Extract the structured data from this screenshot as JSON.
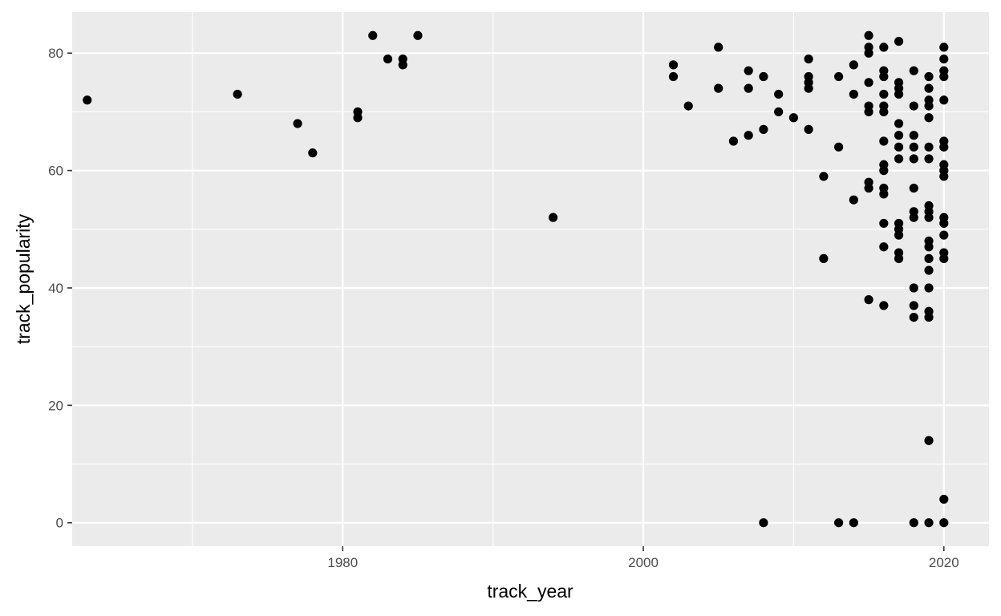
{
  "chart_data": {
    "type": "scatter",
    "title": "",
    "xlabel": "track_year",
    "ylabel": "track_popularity",
    "xlim": [
      1962,
      2023
    ],
    "ylim": [
      -4,
      87
    ],
    "x_ticks": [
      1980,
      2000,
      2020
    ],
    "x_tick_labels": [
      "1980",
      "2000",
      "2020"
    ],
    "y_ticks": [
      0,
      20,
      40,
      60,
      80
    ],
    "y_tick_labels": [
      "0",
      "20",
      "40",
      "60",
      "80"
    ],
    "grid": true,
    "legend": "none",
    "colors": {
      "panel": "#ebebeb",
      "grid": "#ffffff",
      "point": "#000000"
    },
    "points": [
      {
        "x": 1963,
        "y": 72
      },
      {
        "x": 1973,
        "y": 73
      },
      {
        "x": 1977,
        "y": 68
      },
      {
        "x": 1978,
        "y": 63
      },
      {
        "x": 1981,
        "y": 70
      },
      {
        "x": 1981,
        "y": 69
      },
      {
        "x": 1982,
        "y": 83
      },
      {
        "x": 1983,
        "y": 79
      },
      {
        "x": 1984,
        "y": 79
      },
      {
        "x": 1984,
        "y": 78
      },
      {
        "x": 1985,
        "y": 83
      },
      {
        "x": 1994,
        "y": 52
      },
      {
        "x": 2002,
        "y": 78
      },
      {
        "x": 2002,
        "y": 76
      },
      {
        "x": 2003,
        "y": 71
      },
      {
        "x": 2005,
        "y": 81
      },
      {
        "x": 2005,
        "y": 74
      },
      {
        "x": 2006,
        "y": 65
      },
      {
        "x": 2007,
        "y": 77
      },
      {
        "x": 2007,
        "y": 74
      },
      {
        "x": 2007,
        "y": 66
      },
      {
        "x": 2008,
        "y": 76
      },
      {
        "x": 2008,
        "y": 67
      },
      {
        "x": 2008,
        "y": 0
      },
      {
        "x": 2009,
        "y": 73
      },
      {
        "x": 2009,
        "y": 70
      },
      {
        "x": 2010,
        "y": 69
      },
      {
        "x": 2011,
        "y": 79
      },
      {
        "x": 2011,
        "y": 76
      },
      {
        "x": 2011,
        "y": 75
      },
      {
        "x": 2011,
        "y": 74
      },
      {
        "x": 2011,
        "y": 67
      },
      {
        "x": 2012,
        "y": 59
      },
      {
        "x": 2012,
        "y": 45
      },
      {
        "x": 2013,
        "y": 76
      },
      {
        "x": 2013,
        "y": 64
      },
      {
        "x": 2013,
        "y": 0
      },
      {
        "x": 2014,
        "y": 78
      },
      {
        "x": 2014,
        "y": 73
      },
      {
        "x": 2014,
        "y": 55
      },
      {
        "x": 2014,
        "y": 0
      },
      {
        "x": 2015,
        "y": 83
      },
      {
        "x": 2015,
        "y": 81
      },
      {
        "x": 2015,
        "y": 80
      },
      {
        "x": 2015,
        "y": 75
      },
      {
        "x": 2015,
        "y": 71
      },
      {
        "x": 2015,
        "y": 70
      },
      {
        "x": 2015,
        "y": 58
      },
      {
        "x": 2015,
        "y": 57
      },
      {
        "x": 2015,
        "y": 38
      },
      {
        "x": 2016,
        "y": 81
      },
      {
        "x": 2016,
        "y": 77
      },
      {
        "x": 2016,
        "y": 76
      },
      {
        "x": 2016,
        "y": 73
      },
      {
        "x": 2016,
        "y": 71
      },
      {
        "x": 2016,
        "y": 70
      },
      {
        "x": 2016,
        "y": 65
      },
      {
        "x": 2016,
        "y": 61
      },
      {
        "x": 2016,
        "y": 60
      },
      {
        "x": 2016,
        "y": 57
      },
      {
        "x": 2016,
        "y": 56
      },
      {
        "x": 2016,
        "y": 51
      },
      {
        "x": 2016,
        "y": 47
      },
      {
        "x": 2016,
        "y": 37
      },
      {
        "x": 2017,
        "y": 82
      },
      {
        "x": 2017,
        "y": 75
      },
      {
        "x": 2017,
        "y": 74
      },
      {
        "x": 2017,
        "y": 73
      },
      {
        "x": 2017,
        "y": 68
      },
      {
        "x": 2017,
        "y": 66
      },
      {
        "x": 2017,
        "y": 64
      },
      {
        "x": 2017,
        "y": 62
      },
      {
        "x": 2017,
        "y": 51
      },
      {
        "x": 2017,
        "y": 50
      },
      {
        "x": 2017,
        "y": 49
      },
      {
        "x": 2017,
        "y": 46
      },
      {
        "x": 2017,
        "y": 45
      },
      {
        "x": 2018,
        "y": 77
      },
      {
        "x": 2018,
        "y": 71
      },
      {
        "x": 2018,
        "y": 66
      },
      {
        "x": 2018,
        "y": 64
      },
      {
        "x": 2018,
        "y": 62
      },
      {
        "x": 2018,
        "y": 57
      },
      {
        "x": 2018,
        "y": 53
      },
      {
        "x": 2018,
        "y": 52
      },
      {
        "x": 2018,
        "y": 40
      },
      {
        "x": 2018,
        "y": 37
      },
      {
        "x": 2018,
        "y": 35
      },
      {
        "x": 2018,
        "y": 0
      },
      {
        "x": 2019,
        "y": 76
      },
      {
        "x": 2019,
        "y": 74
      },
      {
        "x": 2019,
        "y": 72
      },
      {
        "x": 2019,
        "y": 71
      },
      {
        "x": 2019,
        "y": 69
      },
      {
        "x": 2019,
        "y": 64
      },
      {
        "x": 2019,
        "y": 62
      },
      {
        "x": 2019,
        "y": 54
      },
      {
        "x": 2019,
        "y": 53
      },
      {
        "x": 2019,
        "y": 52
      },
      {
        "x": 2019,
        "y": 48
      },
      {
        "x": 2019,
        "y": 47
      },
      {
        "x": 2019,
        "y": 45
      },
      {
        "x": 2019,
        "y": 43
      },
      {
        "x": 2019,
        "y": 40
      },
      {
        "x": 2019,
        "y": 36
      },
      {
        "x": 2019,
        "y": 35
      },
      {
        "x": 2019,
        "y": 14
      },
      {
        "x": 2019,
        "y": 0
      },
      {
        "x": 2020,
        "y": 81
      },
      {
        "x": 2020,
        "y": 79
      },
      {
        "x": 2020,
        "y": 77
      },
      {
        "x": 2020,
        "y": 76
      },
      {
        "x": 2020,
        "y": 72
      },
      {
        "x": 2020,
        "y": 65
      },
      {
        "x": 2020,
        "y": 64
      },
      {
        "x": 2020,
        "y": 61
      },
      {
        "x": 2020,
        "y": 60
      },
      {
        "x": 2020,
        "y": 59
      },
      {
        "x": 2020,
        "y": 52
      },
      {
        "x": 2020,
        "y": 51
      },
      {
        "x": 2020,
        "y": 49
      },
      {
        "x": 2020,
        "y": 46
      },
      {
        "x": 2020,
        "y": 45
      },
      {
        "x": 2020,
        "y": 4
      },
      {
        "x": 2020,
        "y": 0
      }
    ]
  }
}
